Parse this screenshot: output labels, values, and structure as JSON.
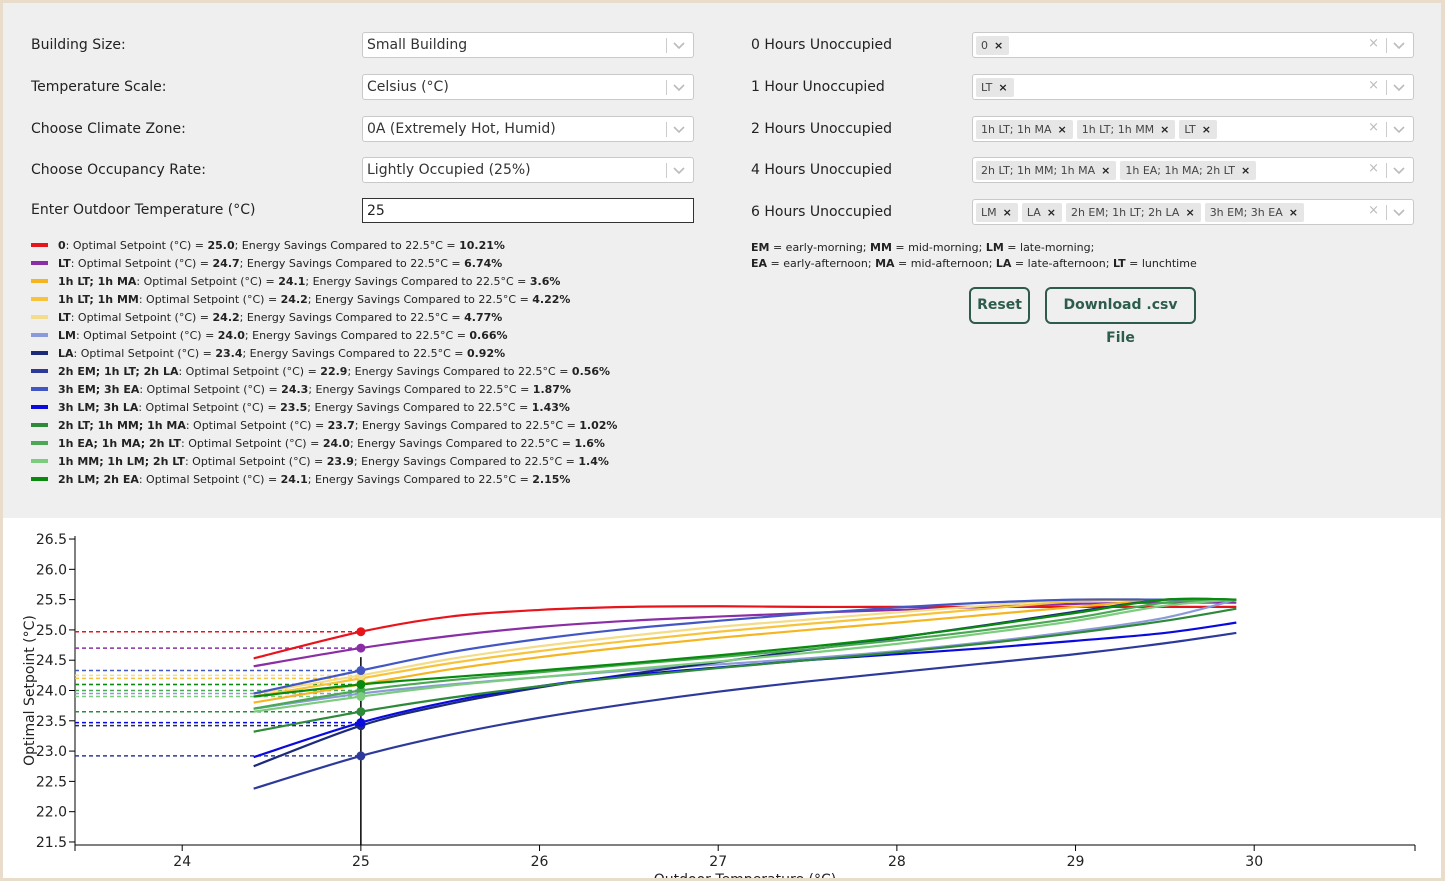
{
  "controls": {
    "building_size": {
      "label": "Building Size:",
      "value": "Small Building"
    },
    "temperature_scale": {
      "label": "Temperature Scale:",
      "value": "Celsius (°C)"
    },
    "climate_zone": {
      "label": "Choose Climate Zone:",
      "value": "0A (Extremely Hot, Humid)"
    },
    "occupancy_rate": {
      "label": "Choose Occupancy Rate:",
      "value": "Lightly Occupied (25%)"
    },
    "outdoor_temp": {
      "label": "Enter Outdoor Temperature (°C)",
      "value": "25"
    }
  },
  "unoccupied": [
    {
      "label": "0 Hours Unoccupied",
      "tags": [
        "0"
      ]
    },
    {
      "label": "1 Hour Unoccupied",
      "tags": [
        "LT"
      ]
    },
    {
      "label": "2 Hours Unoccupied",
      "tags": [
        "1h LT; 1h MA",
        "1h LT; 1h MM",
        "LT"
      ]
    },
    {
      "label": "4 Hours Unoccupied",
      "tags": [
        "2h LT; 1h MM; 1h MA",
        "1h EA; 1h MA; 2h LT"
      ]
    },
    {
      "label": "6 Hours Unoccupied",
      "tags": [
        "LM",
        "LA",
        "2h EM; 1h LT; 2h LA",
        "3h EM; 3h EA"
      ]
    }
  ],
  "clear_icon": "×",
  "abbreviations": {
    "line1": [
      [
        "EM",
        " = early-morning; "
      ],
      [
        "MM",
        " = mid-morning; "
      ],
      [
        "LM",
        " = late-morning;"
      ]
    ],
    "line2": [
      [
        "EA",
        " = early-afternoon; "
      ],
      [
        "MA",
        " = mid-afternoon; "
      ],
      [
        "LA",
        " = late-afternoon; "
      ],
      [
        "LT",
        " = lunchtime"
      ]
    ]
  },
  "buttons": {
    "reset": "Reset",
    "download": "Download .csv File"
  },
  "legend_text": {
    "mid1": ": Optimal Setpoint (°C) = ",
    "mid2": "; Energy Savings Compared to 22.5°C = "
  },
  "legend": [
    {
      "name": "0",
      "color": "#e8141c",
      "setpoint": "25.0",
      "savings": "10.21%"
    },
    {
      "name": "LT",
      "color": "#8a2ea6",
      "setpoint": "24.7",
      "savings": "6.74%"
    },
    {
      "name": "1h LT; 1h MA",
      "color": "#f5b520",
      "setpoint": "24.1",
      "savings": "3.6%"
    },
    {
      "name": "1h LT; 1h MM",
      "color": "#f7c33a",
      "setpoint": "24.2",
      "savings": "4.22%"
    },
    {
      "name": "LT",
      "color": "#f3dd8a",
      "setpoint": "24.2",
      "savings": "4.77%"
    },
    {
      "name": "LM",
      "color": "#8d9ad9",
      "setpoint": "24.0",
      "savings": "0.66%"
    },
    {
      "name": "LA",
      "color": "#1c2a7a",
      "setpoint": "23.4",
      "savings": "0.92%"
    },
    {
      "name": "2h EM; 1h LT; 2h LA",
      "color": "#2e3a9a",
      "setpoint": "22.9",
      "savings": "0.56%"
    },
    {
      "name": "3h EM; 3h EA",
      "color": "#4257c4",
      "setpoint": "24.3",
      "savings": "1.87%"
    },
    {
      "name": "3h LM; 3h LA",
      "color": "#0a0ae0",
      "setpoint": "23.5",
      "savings": "1.43%"
    },
    {
      "name": "2h LT; 1h MM; 1h MA",
      "color": "#2e8a3a",
      "setpoint": "23.7",
      "savings": "1.02%"
    },
    {
      "name": "1h EA; 1h MA; 2h LT",
      "color": "#4aa855",
      "setpoint": "24.0",
      "savings": "1.6%"
    },
    {
      "name": "1h MM; 1h LM; 2h LT",
      "color": "#7ccc7e",
      "setpoint": "23.9",
      "savings": "1.4%"
    },
    {
      "name": "2h LM; 2h EA",
      "color": "#078a0e",
      "setpoint": "24.1",
      "savings": "2.15%"
    }
  ],
  "chart_data": {
    "type": "line",
    "xlabel": "Outdoor Temperature (°C)",
    "ylabel": "Optimal Setpoint (°C)",
    "xlim": [
      23.4,
      30.9
    ],
    "ylim": [
      21.45,
      26.55
    ],
    "xticks": [
      24,
      25,
      26,
      27,
      28,
      29,
      30
    ],
    "yticks": [
      21.5,
      22.0,
      22.5,
      23.0,
      23.5,
      24.0,
      24.5,
      25.0,
      25.5,
      26.0,
      26.5
    ],
    "selected_x": 25,
    "series": [
      {
        "name": "0",
        "color": "#e8141c",
        "x": [
          24.4,
          25,
          25.5,
          26,
          26.5,
          27,
          27.5,
          28,
          28.5,
          29,
          29.5,
          29.9
        ],
        "y": [
          24.53,
          24.97,
          25.22,
          25.33,
          25.38,
          25.39,
          25.38,
          25.38,
          25.38,
          25.38,
          25.38,
          25.38
        ]
      },
      {
        "name": "LT",
        "color": "#8a2ea6",
        "x": [
          24.4,
          25,
          25.5,
          26,
          26.5,
          27,
          27.5,
          28,
          28.5,
          29,
          29.5,
          29.9
        ],
        "y": [
          24.4,
          24.7,
          24.9,
          25.05,
          25.15,
          25.22,
          25.28,
          25.33,
          25.38,
          25.43,
          25.45,
          25.45
        ]
      },
      {
        "name": "1h LT; 1h MA",
        "color": "#f5b520",
        "x": [
          24.4,
          25,
          25.5,
          26,
          26.5,
          27,
          27.5,
          28,
          28.5,
          29,
          29.5,
          29.9
        ],
        "y": [
          23.8,
          24.1,
          24.35,
          24.55,
          24.72,
          24.87,
          25.0,
          25.12,
          25.25,
          25.38,
          25.5,
          25.5
        ]
      },
      {
        "name": "1h LT; 1h MM",
        "color": "#f7c33a",
        "x": [
          24.4,
          25,
          25.5,
          26,
          26.5,
          27,
          27.5,
          28,
          28.5,
          29,
          29.5,
          29.9
        ],
        "y": [
          23.9,
          24.2,
          24.45,
          24.65,
          24.82,
          24.97,
          25.1,
          25.22,
          25.35,
          25.47,
          25.5,
          25.5
        ]
      },
      {
        "name": "LT",
        "color": "#f3dd8a",
        "x": [
          24.4,
          25,
          25.5,
          26,
          26.5,
          27,
          27.5,
          28,
          28.5,
          29,
          29.5,
          29.9
        ],
        "y": [
          23.95,
          24.25,
          24.52,
          24.73,
          24.9,
          25.05,
          25.17,
          25.29,
          25.4,
          25.5,
          25.5,
          25.5
        ]
      },
      {
        "name": "LM",
        "color": "#8d9ad9",
        "x": [
          24.4,
          25,
          25.5,
          26,
          26.5,
          27,
          27.5,
          28,
          28.5,
          29,
          29.5,
          29.9
        ],
        "y": [
          23.7,
          23.95,
          24.1,
          24.22,
          24.33,
          24.43,
          24.53,
          24.65,
          24.8,
          24.98,
          25.2,
          25.5
        ]
      },
      {
        "name": "LA",
        "color": "#1c2a7a",
        "x": [
          24.4,
          25,
          25.5,
          26,
          26.5,
          27,
          27.5,
          28,
          28.5,
          29,
          29.5,
          29.9
        ],
        "y": [
          22.75,
          23.42,
          23.78,
          24.05,
          24.27,
          24.47,
          24.67,
          24.87,
          25.08,
          25.3,
          25.5,
          25.5
        ]
      },
      {
        "name": "2h EM; 1h LT; 2h LA",
        "color": "#2e3a9a",
        "x": [
          24.4,
          25,
          25.5,
          26,
          26.5,
          27,
          27.5,
          28,
          28.5,
          29,
          29.5,
          29.9
        ],
        "y": [
          22.38,
          22.92,
          23.27,
          23.55,
          23.78,
          23.98,
          24.15,
          24.3,
          24.45,
          24.6,
          24.78,
          24.95
        ]
      },
      {
        "name": "3h EM; 3h EA",
        "color": "#4257c4",
        "x": [
          24.4,
          25,
          25.5,
          26,
          26.5,
          27,
          27.5,
          28,
          28.5,
          29,
          29.5,
          29.9
        ],
        "y": [
          23.95,
          24.33,
          24.63,
          24.85,
          25.02,
          25.15,
          25.27,
          25.37,
          25.45,
          25.5,
          25.5,
          25.5
        ]
      },
      {
        "name": "3h LM; 3h LA",
        "color": "#0a0ae0",
        "x": [
          24.4,
          25,
          25.5,
          26,
          26.5,
          27,
          27.5,
          28,
          28.5,
          29,
          29.5,
          29.9
        ],
        "y": [
          22.9,
          23.47,
          23.82,
          24.07,
          24.25,
          24.38,
          24.5,
          24.6,
          24.7,
          24.82,
          24.95,
          25.12
        ]
      },
      {
        "name": "2h LT; 1h MM; 1h MA",
        "color": "#2e8a3a",
        "x": [
          24.4,
          25,
          25.5,
          26,
          26.5,
          27,
          27.5,
          28,
          28.5,
          29,
          29.5,
          29.9
        ],
        "y": [
          23.32,
          23.65,
          23.88,
          24.07,
          24.23,
          24.37,
          24.5,
          24.63,
          24.78,
          24.95,
          25.15,
          25.35
        ]
      },
      {
        "name": "1h EA; 1h MA; 2h LT",
        "color": "#4aa855",
        "x": [
          24.4,
          25,
          25.5,
          26,
          26.5,
          27,
          27.5,
          28,
          28.5,
          29,
          29.5,
          29.9
        ],
        "y": [
          23.7,
          24.0,
          24.17,
          24.3,
          24.43,
          24.55,
          24.68,
          24.83,
          25.0,
          25.2,
          25.45,
          25.5
        ]
      },
      {
        "name": "1h MM; 1h LM; 2h LT",
        "color": "#7ccc7e",
        "x": [
          24.4,
          25,
          25.5,
          26,
          26.5,
          27,
          27.5,
          28,
          28.5,
          29,
          29.5,
          29.9
        ],
        "y": [
          23.65,
          23.9,
          24.08,
          24.22,
          24.35,
          24.48,
          24.62,
          24.77,
          24.95,
          25.15,
          25.4,
          25.5
        ]
      },
      {
        "name": "2h LM; 2h EA",
        "color": "#078a0e",
        "x": [
          24.4,
          25,
          25.5,
          26,
          26.5,
          27,
          27.5,
          28,
          28.5,
          29,
          29.5,
          29.9
        ],
        "y": [
          23.9,
          24.1,
          24.22,
          24.33,
          24.45,
          24.58,
          24.72,
          24.88,
          25.07,
          25.28,
          25.5,
          25.5
        ]
      }
    ]
  }
}
